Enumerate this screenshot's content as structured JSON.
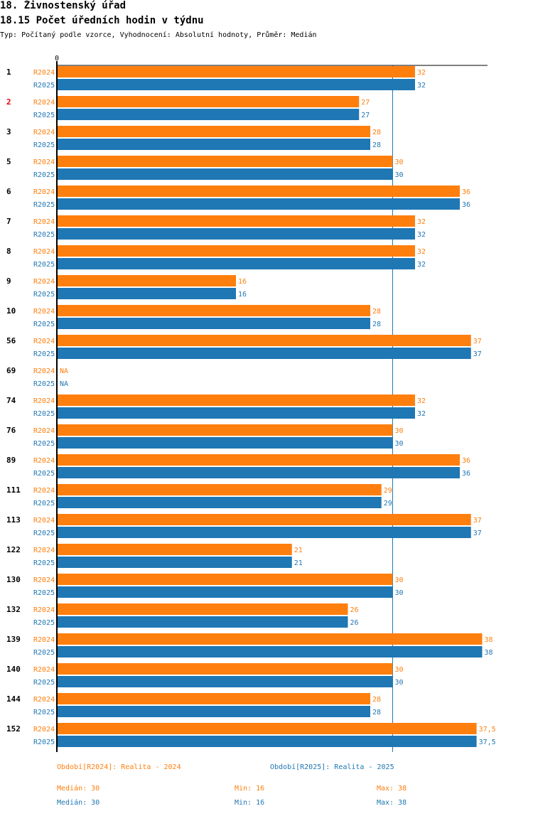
{
  "header": {
    "title": "18. Živnostenský úřad",
    "subtitle": "18.15 Počet úředních hodin v týdnu",
    "type_line": "Typ: Počítaný podle vzorce, Vyhodnocení: Absolutní hodnoty, Průměr: Medián"
  },
  "colors": {
    "r2024": "#ff7f0e",
    "r2025": "#1f77b4",
    "highlight": "#e8000b",
    "axis": "#000000"
  },
  "chart_data": {
    "type": "bar",
    "orientation": "horizontal",
    "title": "18.15 Počet úředních hodin v týdnu",
    "xlim": [
      0,
      40
    ],
    "x_tick_labels": [
      "0"
    ],
    "median_line": 30,
    "highlight_category": "2",
    "categories": [
      "1",
      "2",
      "3",
      "5",
      "6",
      "7",
      "8",
      "9",
      "10",
      "56",
      "69",
      "74",
      "76",
      "89",
      "111",
      "113",
      "122",
      "130",
      "132",
      "139",
      "140",
      "144",
      "152"
    ],
    "series": [
      {
        "name": "R2024",
        "values": [
          32,
          27,
          28,
          30,
          36,
          32,
          32,
          16,
          28,
          37,
          null,
          32,
          30,
          36,
          29,
          37,
          21,
          30,
          26,
          38,
          30,
          28,
          37.5
        ],
        "labels": [
          "32",
          "27",
          "28",
          "30",
          "36",
          "32",
          "32",
          "16",
          "28",
          "37",
          "NA",
          "32",
          "30",
          "36",
          "29",
          "37",
          "21",
          "30",
          "26",
          "38",
          "30",
          "28",
          "37,5"
        ]
      },
      {
        "name": "R2025",
        "values": [
          32,
          27,
          28,
          30,
          36,
          32,
          32,
          16,
          28,
          37,
          null,
          32,
          30,
          36,
          29,
          37,
          21,
          30,
          26,
          38,
          30,
          28,
          37.5
        ],
        "labels": [
          "32",
          "27",
          "28",
          "30",
          "36",
          "32",
          "32",
          "16",
          "28",
          "37",
          "NA",
          "32",
          "30",
          "36",
          "29",
          "37",
          "21",
          "30",
          "26",
          "38",
          "30",
          "28",
          "37,5"
        ]
      }
    ]
  },
  "legend": {
    "r2024": "Období[R2024]: Realita - 2024",
    "r2025": "Období[R2025]: Realita - 2025"
  },
  "stats": {
    "r2024": {
      "median": "Medián: 30",
      "min": "Min: 16",
      "max": "Max: 38"
    },
    "r2025": {
      "median": "Medián: 30",
      "min": "Min: 16",
      "max": "Max: 38"
    }
  }
}
